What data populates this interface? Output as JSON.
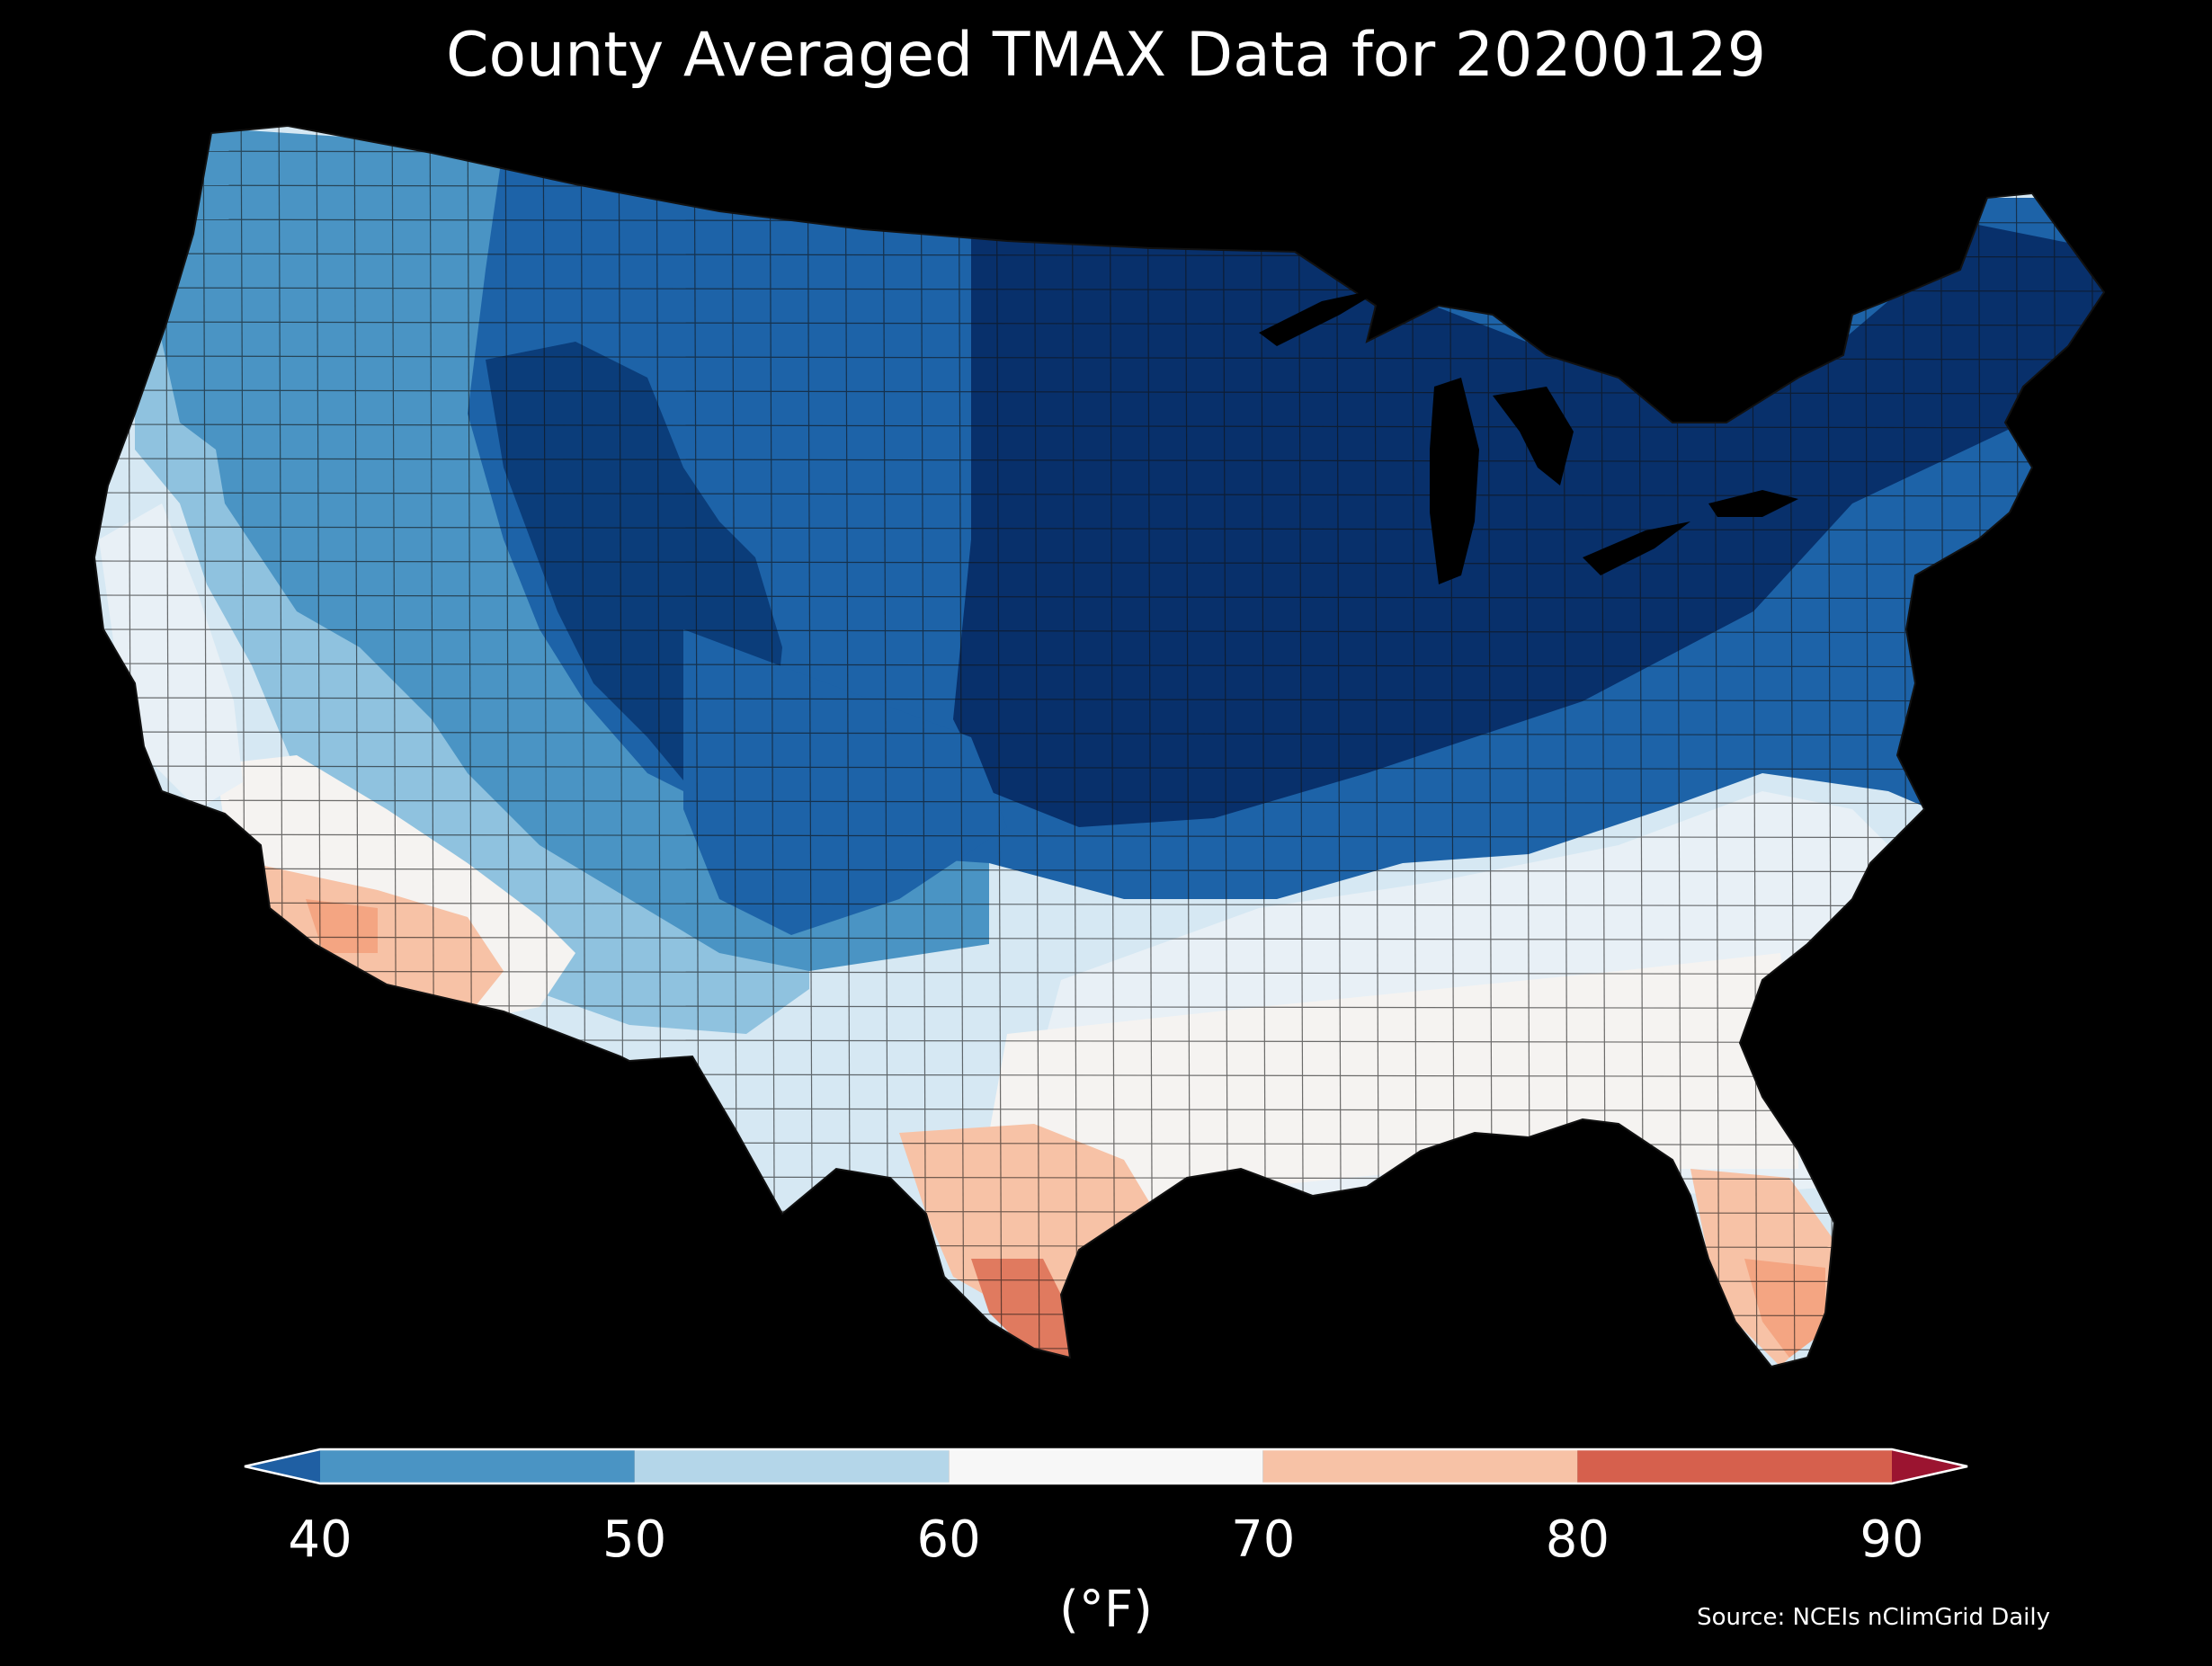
{
  "title": "County Averaged TMAX Data for 20200129",
  "colorbar": {
    "ticks": [
      "40",
      "50",
      "60",
      "70",
      "80",
      "90"
    ],
    "unit": "(°F)",
    "bins": [
      {
        "from": 40,
        "to": 50,
        "color": "#4a94c4"
      },
      {
        "from": 50,
        "to": 60,
        "color": "#b4d6e9"
      },
      {
        "from": 60,
        "to": 70,
        "color": "#f7f7f7"
      },
      {
        "from": 70,
        "to": 80,
        "color": "#f7c2a6"
      },
      {
        "from": 80,
        "to": 90,
        "color": "#d6604d"
      }
    ],
    "under_color": "#1f5fa3",
    "over_color": "#9b1430"
  },
  "source": "Source: NCEIs nClimGrid Daily",
  "map": {
    "colors": {
      "very_cold": "#08306b",
      "cold": "#1d63a8",
      "cool": "#4a94c4",
      "mild_cool": "#8fc2df",
      "pale": "#d6e8f3",
      "neutral": "#f5f3f1",
      "warm": "#f7c2a6",
      "hot": "#e07a5f",
      "border": "#111111"
    }
  }
}
